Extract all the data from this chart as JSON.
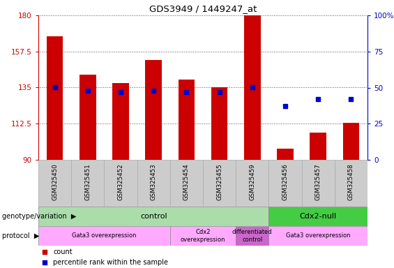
{
  "title": "GDS3949 / 1449247_at",
  "samples": [
    "GSM325450",
    "GSM325451",
    "GSM325452",
    "GSM325453",
    "GSM325454",
    "GSM325455",
    "GSM325459",
    "GSM325456",
    "GSM325457",
    "GSM325458"
  ],
  "counts": [
    167,
    143,
    138,
    152,
    140,
    135,
    180,
    97,
    107,
    113
  ],
  "percentile_ranks": [
    50,
    48,
    47,
    48,
    47,
    47,
    50,
    37,
    42,
    42
  ],
  "ylim": [
    90,
    180
  ],
  "yticks": [
    90,
    112.5,
    135,
    157.5,
    180
  ],
  "ytick_labels": [
    "90",
    "112.5",
    "135",
    "157.5",
    "180"
  ],
  "right_yticks": [
    0,
    25,
    50,
    75,
    100
  ],
  "right_ytick_labels": [
    "0",
    "25",
    "50",
    "75",
    "100%"
  ],
  "bar_color": "#cc0000",
  "dot_color": "#0000cc",
  "bar_bottom": 90,
  "genotype_groups": [
    {
      "label": "control",
      "start": 0,
      "end": 7,
      "color": "#aaddaa"
    },
    {
      "label": "Cdx2-null",
      "start": 7,
      "end": 10,
      "color": "#44cc44"
    }
  ],
  "protocol_groups": [
    {
      "label": "Gata3 overexpression",
      "start": 0,
      "end": 4,
      "color": "#ffaaff"
    },
    {
      "label": "Cdx2\noverexpression",
      "start": 4,
      "end": 6,
      "color": "#ffaaff"
    },
    {
      "label": "differentiated\ncontrol",
      "start": 6,
      "end": 7,
      "color": "#cc66cc"
    },
    {
      "label": "Gata3 overexpression",
      "start": 7,
      "end": 10,
      "color": "#ffaaff"
    }
  ],
  "genotype_label": "genotype/variation",
  "protocol_label": "protocol",
  "legend_count_color": "#cc0000",
  "legend_dot_color": "#0000cc",
  "left_label_color": "#cc0000",
  "right_label_color": "#0000cc",
  "grid_color": "#555555",
  "tick_area_color": "#cccccc",
  "fig_width": 5.65,
  "fig_height": 3.84,
  "dpi": 100
}
